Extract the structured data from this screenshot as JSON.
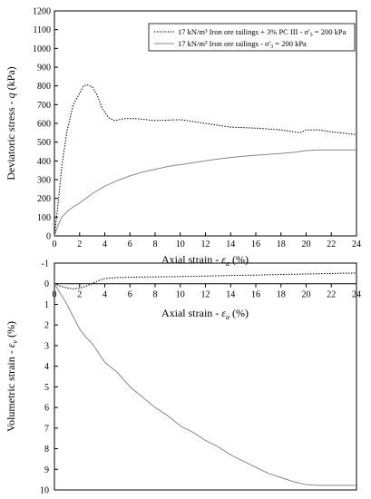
{
  "chart_data": [
    {
      "type": "line",
      "panel": "top",
      "xlabel": "Axial strain - ε_a (%)",
      "xlabel_parts": {
        "main": "Axial strain - ",
        "symbol": "ε",
        "sub": "a",
        "unit": " (%)"
      },
      "ylabel": "Deviatoric stress - q (kPa)",
      "ylabel_parts": {
        "main": "Deviatoric stress - ",
        "symbol": "q",
        "unit": " (kPa)"
      },
      "xlim": [
        0,
        24
      ],
      "ylim": [
        0,
        1200
      ],
      "xticks": [
        "0",
        "2",
        "4",
        "6",
        "8",
        "10",
        "12",
        "14",
        "16",
        "18",
        "20",
        "22",
        "24"
      ],
      "yticks": [
        "0",
        "100",
        "200",
        "300",
        "400",
        "500",
        "600",
        "700",
        "800",
        "900",
        "1000",
        "1100",
        "1200"
      ],
      "grid": false,
      "legend_position": "top-right",
      "series": [
        {
          "name": "17 kN/m³ Iron ore tailings + 3% PC III - σ'₃ = 200 kPa",
          "name_parts": {
            "main": "17 kN/m³ Iron ore tailings + 3% PC III - σ'",
            "sub": "3",
            "tail": " = 200 kPa"
          },
          "style": "dotted",
          "x": [
            0,
            0.3,
            0.6,
            1.0,
            1.5,
            2.0,
            2.3,
            2.6,
            3.0,
            3.4,
            3.8,
            4.3,
            4.8,
            5.5,
            6.5,
            8,
            10,
            12,
            14,
            16,
            18,
            19.5,
            20,
            21,
            22,
            24
          ],
          "y": [
            0,
            180,
            380,
            560,
            700,
            760,
            800,
            805,
            795,
            750,
            680,
            630,
            615,
            625,
            625,
            615,
            620,
            600,
            580,
            575,
            565,
            550,
            565,
            565,
            555,
            540
          ]
        },
        {
          "name": "17 kN/m³ Iron ore tailings - σ'₃ = 200 kPa",
          "name_parts": {
            "main": "17 kN/m³  Iron ore tailings - σ'",
            "sub": "3",
            "tail": " = 200 kPa"
          },
          "style": "solid",
          "x": [
            0,
            0.3,
            0.6,
            1.0,
            1.5,
            2.0,
            3.0,
            4.0,
            5.0,
            6.0,
            7.0,
            8.0,
            9.0,
            10,
            11,
            12,
            13,
            14,
            15,
            16,
            17,
            18,
            19,
            20,
            21,
            22,
            24
          ],
          "y": [
            0,
            60,
            100,
            130,
            155,
            175,
            225,
            265,
            295,
            320,
            340,
            355,
            370,
            380,
            390,
            400,
            410,
            418,
            425,
            430,
            435,
            440,
            445,
            455,
            458,
            458,
            458
          ]
        }
      ]
    },
    {
      "type": "line",
      "panel": "bottom",
      "xlabel": "Axial strain - ε_a (%)",
      "xlabel_parts": {
        "main": "Axial strain - ",
        "symbol": "ε",
        "sub": "a",
        "unit": " (%)"
      },
      "ylabel": "Volumetric strain - ε_v (%)",
      "ylabel_parts": {
        "main": "Volumetric strain - ",
        "symbol": "ε",
        "sub": "v",
        "unit": " (%)"
      },
      "xlim": [
        0,
        24
      ],
      "ylim": [
        -1,
        10
      ],
      "y_inverted": true,
      "xticks": [
        "0",
        "2",
        "4",
        "6",
        "8",
        "10",
        "12",
        "14",
        "16",
        "18",
        "20",
        "22",
        "24"
      ],
      "yticks": [
        "-1",
        "0",
        "1",
        "2",
        "3",
        "4",
        "5",
        "6",
        "7",
        "8",
        "9",
        "10"
      ],
      "grid": false,
      "series": [
        {
          "name": "17 kN/m³ Iron ore tailings + 3% PC III - σ'₃ = 200 kPa",
          "style": "dotted",
          "x": [
            0,
            0.5,
            1.0,
            1.5,
            2.0,
            2.5,
            3.0,
            3.5,
            4.0,
            5,
            6,
            8,
            10,
            12,
            14,
            16,
            18,
            20,
            22,
            24
          ],
          "y": [
            0,
            0.12,
            0.2,
            0.25,
            0.22,
            0.12,
            0.0,
            -0.15,
            -0.25,
            -0.3,
            -0.32,
            -0.33,
            -0.35,
            -0.37,
            -0.4,
            -0.42,
            -0.45,
            -0.47,
            -0.5,
            -0.52
          ]
        },
        {
          "name": "17 kN/m³ Iron ore tailings - σ'₃ = 200 kPa",
          "style": "solid",
          "x": [
            0,
            0.5,
            1.0,
            1.5,
            2.0,
            2.5,
            3.0,
            4.0,
            5.0,
            6.0,
            7.0,
            8.0,
            9.0,
            10,
            11,
            12,
            13,
            14,
            15,
            16,
            17,
            18,
            19,
            20,
            21,
            22,
            23,
            24
          ],
          "y": [
            0,
            0.5,
            1.0,
            1.6,
            2.2,
            2.6,
            2.9,
            3.8,
            4.3,
            5.0,
            5.5,
            6.0,
            6.4,
            6.9,
            7.2,
            7.6,
            7.9,
            8.3,
            8.6,
            8.9,
            9.2,
            9.4,
            9.6,
            9.75,
            9.78,
            9.78,
            9.78,
            9.78
          ]
        }
      ]
    }
  ]
}
